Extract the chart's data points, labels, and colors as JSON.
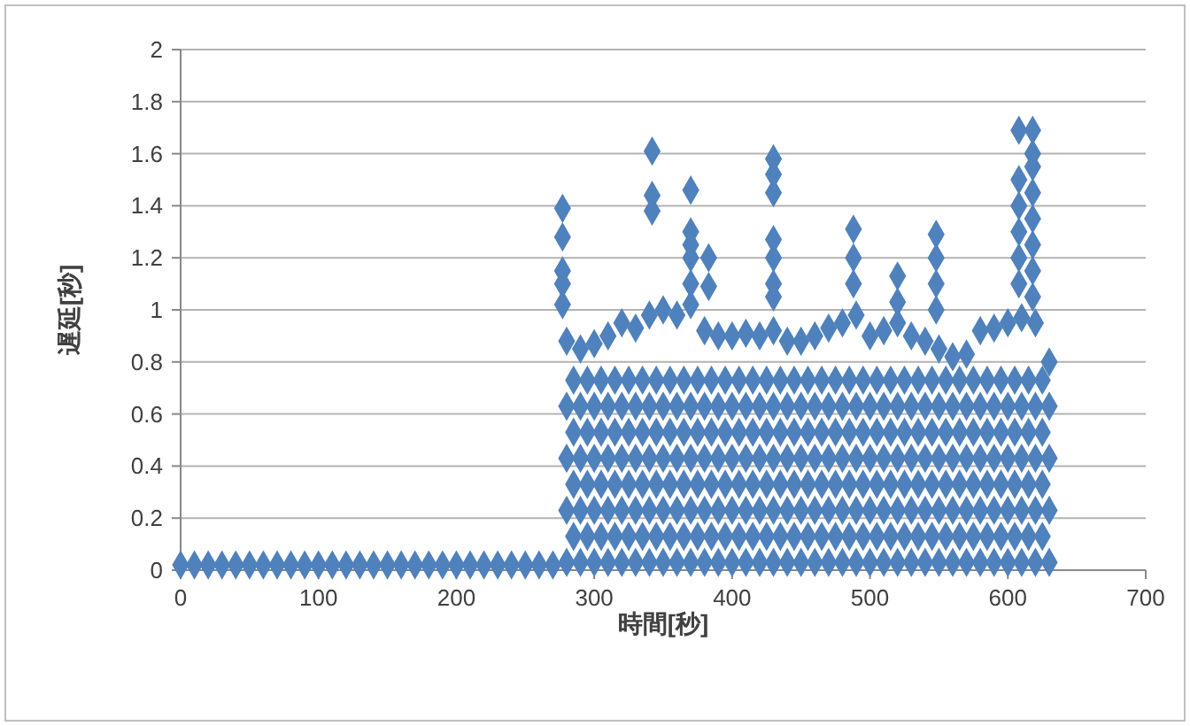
{
  "chart_data": {
    "type": "scatter",
    "xlabel": "時間[秒]",
    "ylabel": "遅延[秒]",
    "xlim": [
      0,
      700
    ],
    "xticks": [
      0,
      100,
      200,
      300,
      400,
      500,
      600,
      700
    ],
    "ylim": [
      0,
      2
    ],
    "yticks": [
      0,
      0.2,
      0.4,
      0.6,
      0.8,
      1,
      1.2,
      1.4,
      1.6,
      1.8,
      2
    ],
    "grid": "y",
    "marker": "diamond",
    "series": [
      {
        "color": "#4f81bd",
        "x": [
          0,
          10,
          20,
          30,
          40,
          50,
          60,
          70,
          80,
          90,
          100,
          110,
          120,
          130,
          140,
          150,
          160,
          170,
          180,
          190,
          200,
          210,
          220,
          230,
          240,
          250,
          260,
          270,
          280,
          290,
          300,
          310,
          320,
          330,
          340,
          350,
          360,
          370,
          380,
          390,
          400,
          410,
          420,
          430,
          440,
          450,
          460,
          470,
          480,
          490,
          500,
          510,
          520,
          530,
          540,
          550,
          560,
          570,
          580,
          590,
          600,
          610,
          620,
          630,
          285,
          295,
          305,
          315,
          325,
          335,
          345,
          355,
          365,
          375,
          385,
          395,
          405,
          415,
          425,
          435,
          445,
          455,
          465,
          475,
          485,
          495,
          505,
          515,
          525,
          535,
          545,
          555,
          565,
          575,
          585,
          595,
          605,
          615,
          625,
          280,
          290,
          300,
          310,
          320,
          330,
          340,
          350,
          360,
          370,
          380,
          390,
          400,
          410,
          420,
          430,
          440,
          450,
          460,
          470,
          480,
          490,
          500,
          510,
          520,
          530,
          540,
          550,
          560,
          570,
          580,
          590,
          600,
          610,
          620,
          630,
          285,
          295,
          305,
          315,
          325,
          335,
          345,
          355,
          365,
          375,
          385,
          395,
          405,
          415,
          425,
          435,
          445,
          455,
          465,
          475,
          485,
          495,
          505,
          515,
          525,
          535,
          545,
          555,
          565,
          575,
          585,
          595,
          605,
          615,
          625,
          280,
          290,
          300,
          310,
          320,
          330,
          340,
          350,
          360,
          370,
          380,
          390,
          400,
          410,
          420,
          430,
          440,
          450,
          460,
          470,
          480,
          490,
          500,
          510,
          520,
          530,
          540,
          550,
          560,
          570,
          580,
          590,
          600,
          610,
          620,
          630,
          285,
          295,
          305,
          315,
          325,
          335,
          345,
          355,
          365,
          375,
          385,
          395,
          405,
          415,
          425,
          435,
          445,
          455,
          465,
          475,
          485,
          495,
          505,
          515,
          525,
          535,
          545,
          555,
          565,
          575,
          585,
          595,
          605,
          615,
          625,
          280,
          290,
          300,
          310,
          320,
          330,
          340,
          350,
          360,
          370,
          380,
          390,
          400,
          410,
          420,
          430,
          440,
          450,
          460,
          470,
          480,
          490,
          500,
          510,
          520,
          530,
          540,
          550,
          560,
          570,
          580,
          590,
          600,
          610,
          620,
          630,
          285,
          295,
          305,
          315,
          325,
          335,
          345,
          355,
          365,
          375,
          385,
          395,
          405,
          415,
          425,
          435,
          445,
          455,
          465,
          475,
          485,
          495,
          505,
          515,
          525,
          535,
          545,
          555,
          565,
          575,
          585,
          595,
          605,
          615,
          625,
          280,
          290,
          300,
          310,
          320,
          330,
          340,
          350,
          360,
          370,
          380,
          390,
          400,
          410,
          420,
          430,
          440,
          450,
          460,
          470,
          480,
          490,
          500,
          510,
          520,
          530,
          540,
          550,
          560,
          570,
          580,
          590,
          600,
          610,
          620,
          630,
          277,
          277,
          277,
          277,
          277,
          342,
          342,
          342,
          370,
          370,
          370,
          370,
          370,
          383,
          383,
          430,
          430,
          430,
          430,
          430,
          430,
          430,
          488,
          488,
          488,
          520,
          520,
          548,
          548,
          548,
          548,
          608,
          608,
          608,
          608,
          608,
          608,
          618,
          618,
          618,
          618,
          618,
          618,
          618,
          618
        ],
        "values": [
          0.02,
          0.02,
          0.02,
          0.02,
          0.02,
          0.02,
          0.02,
          0.02,
          0.02,
          0.02,
          0.02,
          0.02,
          0.02,
          0.02,
          0.02,
          0.02,
          0.02,
          0.02,
          0.02,
          0.02,
          0.02,
          0.02,
          0.02,
          0.02,
          0.02,
          0.02,
          0.02,
          0.02,
          0.03,
          0.03,
          0.03,
          0.03,
          0.03,
          0.03,
          0.03,
          0.03,
          0.03,
          0.03,
          0.03,
          0.03,
          0.03,
          0.03,
          0.03,
          0.03,
          0.03,
          0.03,
          0.03,
          0.03,
          0.03,
          0.03,
          0.03,
          0.03,
          0.03,
          0.03,
          0.03,
          0.03,
          0.03,
          0.03,
          0.03,
          0.03,
          0.03,
          0.03,
          0.03,
          0.03,
          0.13,
          0.13,
          0.13,
          0.13,
          0.13,
          0.13,
          0.13,
          0.13,
          0.13,
          0.13,
          0.13,
          0.13,
          0.13,
          0.13,
          0.13,
          0.13,
          0.13,
          0.13,
          0.13,
          0.13,
          0.13,
          0.13,
          0.13,
          0.13,
          0.13,
          0.13,
          0.13,
          0.13,
          0.13,
          0.13,
          0.13,
          0.13,
          0.13,
          0.13,
          0.13,
          0.23,
          0.23,
          0.23,
          0.23,
          0.23,
          0.23,
          0.23,
          0.23,
          0.23,
          0.23,
          0.23,
          0.23,
          0.23,
          0.23,
          0.23,
          0.23,
          0.23,
          0.23,
          0.23,
          0.23,
          0.23,
          0.23,
          0.23,
          0.23,
          0.23,
          0.23,
          0.23,
          0.23,
          0.23,
          0.23,
          0.23,
          0.23,
          0.23,
          0.23,
          0.23,
          0.23,
          0.33,
          0.33,
          0.33,
          0.33,
          0.33,
          0.33,
          0.33,
          0.33,
          0.33,
          0.33,
          0.33,
          0.33,
          0.33,
          0.33,
          0.33,
          0.33,
          0.33,
          0.33,
          0.33,
          0.33,
          0.33,
          0.33,
          0.33,
          0.33,
          0.33,
          0.33,
          0.33,
          0.33,
          0.33,
          0.33,
          0.33,
          0.33,
          0.33,
          0.33,
          0.33,
          0.43,
          0.43,
          0.43,
          0.43,
          0.43,
          0.43,
          0.43,
          0.43,
          0.43,
          0.43,
          0.43,
          0.43,
          0.43,
          0.43,
          0.43,
          0.43,
          0.43,
          0.43,
          0.43,
          0.43,
          0.43,
          0.43,
          0.43,
          0.43,
          0.43,
          0.43,
          0.43,
          0.43,
          0.43,
          0.43,
          0.43,
          0.43,
          0.43,
          0.43,
          0.43,
          0.43,
          0.53,
          0.53,
          0.53,
          0.53,
          0.53,
          0.53,
          0.53,
          0.53,
          0.53,
          0.53,
          0.53,
          0.53,
          0.53,
          0.53,
          0.53,
          0.53,
          0.53,
          0.53,
          0.53,
          0.53,
          0.53,
          0.53,
          0.53,
          0.53,
          0.53,
          0.53,
          0.53,
          0.53,
          0.53,
          0.53,
          0.53,
          0.53,
          0.53,
          0.53,
          0.53,
          0.63,
          0.63,
          0.63,
          0.63,
          0.63,
          0.63,
          0.63,
          0.63,
          0.63,
          0.63,
          0.63,
          0.63,
          0.63,
          0.63,
          0.63,
          0.63,
          0.63,
          0.63,
          0.63,
          0.63,
          0.63,
          0.63,
          0.63,
          0.63,
          0.63,
          0.63,
          0.63,
          0.63,
          0.63,
          0.63,
          0.63,
          0.63,
          0.63,
          0.63,
          0.63,
          0.63,
          0.73,
          0.73,
          0.73,
          0.73,
          0.73,
          0.73,
          0.73,
          0.73,
          0.73,
          0.73,
          0.73,
          0.73,
          0.73,
          0.73,
          0.73,
          0.73,
          0.73,
          0.73,
          0.73,
          0.73,
          0.73,
          0.73,
          0.73,
          0.73,
          0.73,
          0.73,
          0.73,
          0.73,
          0.73,
          0.73,
          0.73,
          0.73,
          0.73,
          0.73,
          0.73,
          0.88,
          0.85,
          0.87,
          0.9,
          0.95,
          0.93,
          0.98,
          1.0,
          0.98,
          1.02,
          0.92,
          0.9,
          0.9,
          0.91,
          0.9,
          0.92,
          0.88,
          0.88,
          0.9,
          0.93,
          0.95,
          0.98,
          0.9,
          0.92,
          0.95,
          0.9,
          0.88,
          0.85,
          0.82,
          0.83,
          0.92,
          0.93,
          0.95,
          0.97,
          0.95,
          0.8,
          1.39,
          1.28,
          1.15,
          1.1,
          1.02,
          1.61,
          1.44,
          1.38,
          1.46,
          1.3,
          1.25,
          1.2,
          1.1,
          1.2,
          1.09,
          1.58,
          1.52,
          1.45,
          1.27,
          1.2,
          1.1,
          1.05,
          1.31,
          1.2,
          1.1,
          1.13,
          1.03,
          1.29,
          1.2,
          1.1,
          1.0,
          1.69,
          1.5,
          1.4,
          1.3,
          1.2,
          1.1,
          1.69,
          1.6,
          1.55,
          1.45,
          1.35,
          1.25,
          1.15,
          1.05
        ]
      }
    ]
  }
}
